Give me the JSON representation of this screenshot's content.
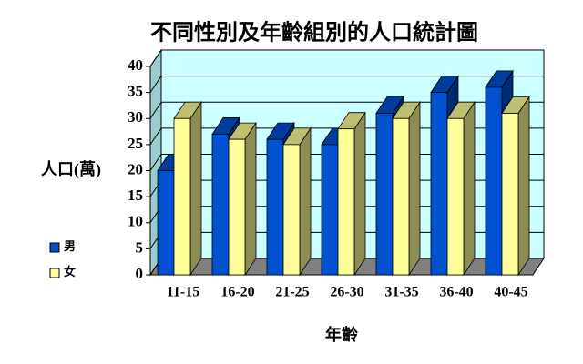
{
  "chart_data": {
    "type": "bar3d",
    "title": "不同性別及年齡組別的人口統計圖",
    "y_label": "人口(萬)",
    "x_label": "年齡",
    "categories": [
      "11-15",
      "16-20",
      "21-25",
      "26-30",
      "31-35",
      "36-40",
      "40-45"
    ],
    "series": [
      {
        "name": "男",
        "color": "#0050d0",
        "values": [
          20,
          27,
          26,
          25,
          31,
          35,
          36
        ]
      },
      {
        "name": "女",
        "color": "#ffff99",
        "values": [
          30,
          26,
          25,
          28,
          30,
          30,
          31
        ]
      }
    ],
    "ylim": [
      0,
      40
    ],
    "yticks": [
      0,
      5,
      10,
      15,
      20,
      25,
      30,
      35,
      40
    ],
    "grid": true
  }
}
